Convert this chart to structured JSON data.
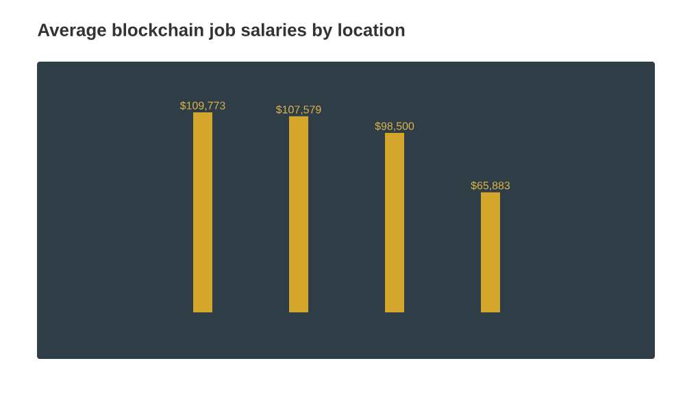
{
  "chart_data": {
    "type": "bar",
    "title": "Average blockchain job salaries by location",
    "categories": [
      null,
      null,
      null,
      null
    ],
    "values": [
      109773,
      107579,
      98500,
      65883
    ],
    "value_labels": [
      "$109,773",
      "$107,579",
      "$98,500",
      "$65,883"
    ],
    "color": "#d4a72c"
  }
}
